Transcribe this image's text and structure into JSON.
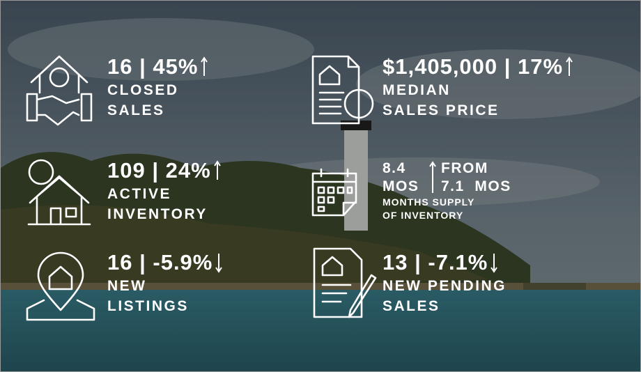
{
  "stats": [
    {
      "headline": "16 | 45%",
      "trend": "up",
      "label": [
        "CLOSED",
        "SALES"
      ]
    },
    {
      "headline": "$1,405,000 | 17%",
      "trend": "up",
      "label": [
        "MEDIAN",
        "SALES PRICE"
      ]
    },
    {
      "headline": "109 | 24%",
      "trend": "up",
      "label": [
        "ACTIVE",
        "INVENTORY"
      ]
    },
    {
      "current": "8.4",
      "current_unit": "MOS",
      "from": "FROM",
      "previous": "7.1  MOS",
      "trend": "up",
      "label": [
        "MONTHS SUPPLY",
        "OF INVENTORY"
      ]
    },
    {
      "headline": "16 | -5.9%",
      "trend": "down",
      "label": [
        "NEW",
        "LISTINGS"
      ]
    },
    {
      "headline": "13 | -7.1%",
      "trend": "down",
      "label": [
        "NEW PENDING",
        "SALES"
      ]
    }
  ]
}
